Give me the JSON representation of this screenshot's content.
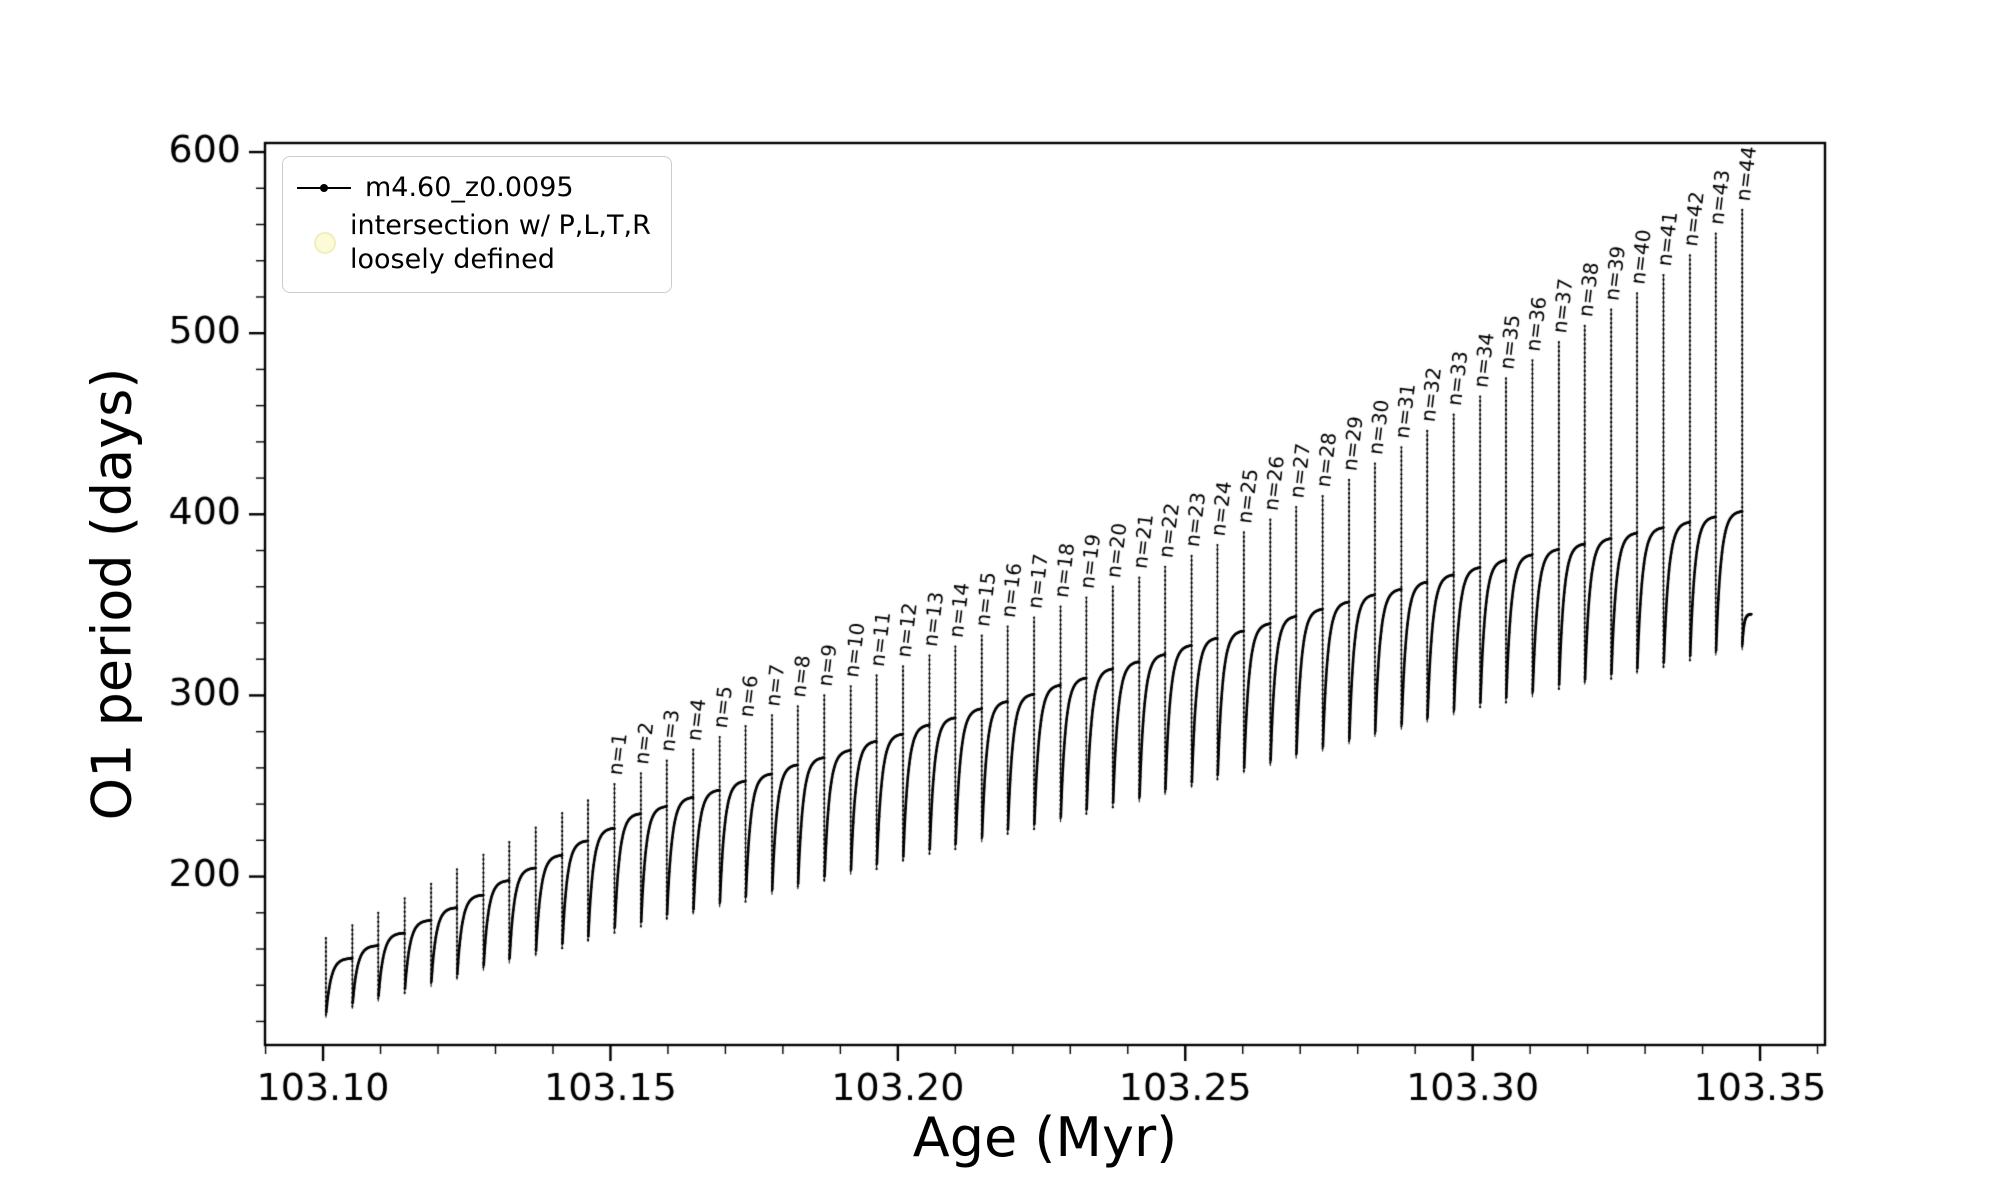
{
  "chart_data": {
    "type": "line",
    "title": "",
    "xlabel": "Age (Myr)",
    "ylabel": "O1 period (days)",
    "xlim": [
      103.0899,
      103.3613
    ],
    "ylim": [
      107,
      605
    ],
    "x_ticks": [
      103.1,
      103.15,
      103.2,
      103.25,
      103.3,
      103.35
    ],
    "x_tick_labels": [
      "103.10",
      "103.15",
      "103.20",
      "103.25",
      "103.30",
      "103.35"
    ],
    "x_minor_step": 0.01,
    "y_ticks": [
      200,
      300,
      400,
      500,
      600
    ],
    "y_tick_labels": [
      "200",
      "300",
      "400",
      "500",
      "600"
    ],
    "y_minor_step": 20,
    "grid": false,
    "line_color": "#000000",
    "legend": {
      "position": "upper-left",
      "entries": [
        {
          "label": "m4.60_z0.0095",
          "marker": "dotted-line",
          "color": "#000000"
        },
        {
          "lines": [
            "intersection w/ P,L,T,R",
            "loosely defined"
          ],
          "marker": "circle",
          "color": "#fcfbd8"
        }
      ]
    },
    "series": {
      "name": "m4.60_z0.0095",
      "description": "Relaxation-oscillation cycles: each cycle has a sharp vertical spike (dip to peak) followed by a saturating arc rising to arc_top before the next spike. Spikes n=1..n=44 are annotated.",
      "spikes": {
        "x": [
          103.1005,
          103.1051,
          103.1096,
          103.1142,
          103.1188,
          103.1233,
          103.1279,
          103.1324,
          103.137,
          103.1416,
          103.1461,
          103.1507,
          103.1553,
          103.1598,
          103.1644,
          103.169,
          103.1735,
          103.1781,
          103.1826,
          103.1872,
          103.1918,
          103.1963,
          103.2009,
          103.2055,
          103.21,
          103.2146,
          103.2191,
          103.2237,
          103.2283,
          103.2328,
          103.2374,
          103.242,
          103.2465,
          103.2511,
          103.2556,
          103.2602,
          103.2648,
          103.2693,
          103.2739,
          103.2785,
          103.283,
          103.2876,
          103.2921,
          103.2967,
          103.3013,
          103.3058,
          103.3104,
          103.315,
          103.3195,
          103.3241,
          103.3286,
          103.3332,
          103.3378,
          103.3423,
          103.3469
        ],
        "peak": [
          166,
          173,
          180,
          188,
          196,
          204,
          212,
          219,
          227,
          235,
          242,
          251,
          257,
          264,
          270,
          277,
          283,
          289,
          294,
          300,
          305,
          311,
          316,
          322,
          327,
          333,
          338,
          343,
          349,
          354,
          360,
          365,
          371,
          377,
          383,
          390,
          397,
          404,
          410,
          419,
          428,
          437,
          446,
          455,
          465,
          475,
          485,
          495,
          504,
          513,
          522,
          532,
          543,
          555,
          568
        ],
        "dip": [
          122,
          127,
          131,
          135,
          139,
          143,
          148,
          152,
          156,
          160,
          164,
          169,
          172,
          176,
          179,
          183,
          186,
          190,
          193,
          197,
          201,
          204,
          208,
          212,
          215,
          219,
          223,
          226,
          230,
          234,
          238,
          241,
          245,
          249,
          253,
          257,
          261,
          265,
          269,
          273,
          277,
          281,
          285,
          289,
          293,
          296,
          299,
          303,
          306,
          309,
          312,
          315,
          319,
          322,
          325
        ],
        "arc_top": [
          155,
          162,
          169,
          176,
          183,
          190,
          198,
          205,
          212,
          220,
          227,
          235,
          239,
          244,
          248,
          253,
          257,
          262,
          266,
          270,
          275,
          279,
          284,
          288,
          293,
          297,
          301,
          306,
          310,
          315,
          319,
          323,
          328,
          332,
          336,
          340,
          344,
          348,
          352,
          356,
          359,
          363,
          367,
          371,
          375,
          378,
          381,
          384,
          387,
          390,
          393,
          396,
          399,
          402,
          405
        ],
        "label_start_index": 11,
        "labels": [
          "n=1",
          "n=2",
          "n=3",
          "n=4",
          "n=5",
          "n=6",
          "n=7",
          "n=8",
          "n=9",
          "n=10",
          "n=11",
          "n=12",
          "n=13",
          "n=14",
          "n=15",
          "n=16",
          "n=17",
          "n=18",
          "n=19",
          "n=20",
          "n=21",
          "n=22",
          "n=23",
          "n=24",
          "n=25",
          "n=26",
          "n=27",
          "n=28",
          "n=29",
          "n=30",
          "n=31",
          "n=32",
          "n=33",
          "n=34",
          "n=35",
          "n=36",
          "n=37",
          "n=38",
          "n=39",
          "n=40",
          "n=41",
          "n=42",
          "n=43",
          "n=44"
        ]
      }
    }
  }
}
